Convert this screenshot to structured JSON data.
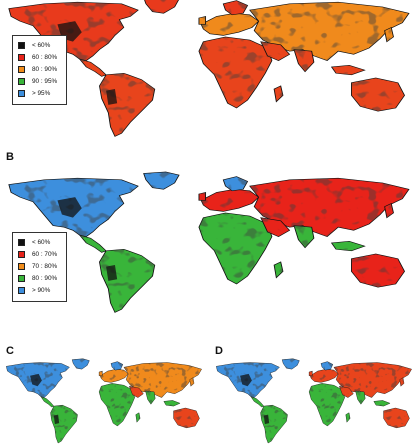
{
  "panels": [
    {
      "label": "",
      "palette": {
        "north": "#e83a1c",
        "temperate": "#f08a1c",
        "tropic": "#e8441c",
        "arid": "#e8441c"
      },
      "legend": {
        "items": [
          {
            "label": "< 60%",
            "color": "#111111"
          },
          {
            "label": "60 : 80%",
            "color": "#e8231a"
          },
          {
            "label": "80 : 90%",
            "color": "#f18d1b"
          },
          {
            "label": "90 : 95%",
            "color": "#39b53a"
          },
          {
            "label": "> 95%",
            "color": "#3d8fdd"
          }
        ]
      }
    },
    {
      "label": "B",
      "palette": {
        "north": "#3d8fdd",
        "temperate": "#e8231a",
        "tropic": "#39b53a",
        "arid": "#e8231a"
      },
      "legend": {
        "items": [
          {
            "label": "< 60%",
            "color": "#111111"
          },
          {
            "label": "60 : 70%",
            "color": "#e8231a"
          },
          {
            "label": "70 : 80%",
            "color": "#f18d1b"
          },
          {
            "label": "80 : 90%",
            "color": "#39b53a"
          },
          {
            "label": "> 90%",
            "color": "#3d8fdd"
          }
        ]
      }
    },
    {
      "label": "C",
      "palette": {
        "north": "#3d8fdd",
        "temperate": "#f08a1c",
        "tropic": "#39b53a",
        "arid": "#e8441c"
      }
    },
    {
      "label": "D",
      "palette": {
        "north": "#3d8fdd",
        "temperate": "#e8441c",
        "tropic": "#39b53a",
        "arid": "#e8441c"
      }
    }
  ],
  "colors": {
    "coastline": "#111111",
    "speckle_dark": "#111111",
    "speckle_green": "#39b53a",
    "speckle_blue": "#3d8fdd"
  }
}
